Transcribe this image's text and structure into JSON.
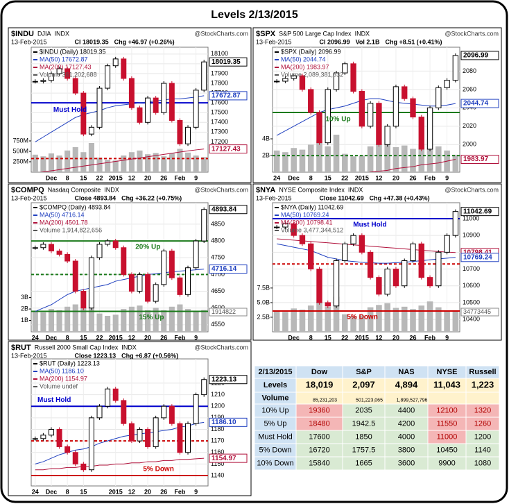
{
  "title": "Levels 2/13/2015",
  "colors": {
    "up": "#ffffff",
    "down": "#c8102e",
    "ma50": "#1f3fbf",
    "ma200": "#b0103a",
    "volume": "#b8b8b8",
    "price": "#000000"
  },
  "chart_data": [
    {
      "type": "candlestick",
      "symbol": "$INDU",
      "name": "DJIA",
      "exchange": "INDX",
      "source": "@StockCharts.com",
      "date": "13-Feb-2015",
      "stats": [
        "Cl 18019.35",
        "Chg +46.97 (+0.26%)"
      ],
      "legend": [
        "$INDU (Daily) 18019.35",
        "MA(50) 17672.87",
        "MA(200) 17127.43",
        "Volume 361,202,688"
      ],
      "categories": [
        null,
        null,
        "Dec",
        null,
        "8",
        null,
        "15",
        null,
        "22",
        null,
        "2015",
        null,
        "12",
        null,
        "20",
        null,
        "26",
        null,
        "Feb",
        null,
        "9",
        null
      ],
      "values": [
        17820,
        17830,
        17900,
        17950,
        17850,
        17700,
        17280,
        17350,
        17750,
        17980,
        18050,
        17850,
        17550,
        17400,
        17650,
        17500,
        17800,
        17420,
        17180,
        17350,
        17730,
        18019.35
      ],
      "ma50": [
        17200,
        17250,
        17300,
        17350,
        17400,
        17450,
        17480,
        17500,
        17520,
        17550,
        17570,
        17580,
        17590,
        17600,
        17610,
        17620,
        17630,
        17640,
        17640,
        17650,
        17660,
        17672.87
      ],
      "ma200": [
        16880,
        16892,
        16904,
        16916,
        16928,
        16940,
        16952,
        16964,
        16976,
        16988,
        17000,
        17012,
        17024,
        17036,
        17048,
        17060,
        17072,
        17084,
        17096,
        17108,
        17118,
        17127.43
      ],
      "volume": [
        420000000,
        380000000,
        450000000,
        400000000,
        520000000,
        600000000,
        480000000,
        700000000,
        350000000,
        300000000,
        280000000,
        400000000,
        480000000,
        520000000,
        430000000,
        460000000,
        380000000,
        450000000,
        560000000,
        470000000,
        400000000,
        361202688
      ],
      "vlim": [
        0,
        3000000000
      ],
      "vticks": [
        {
          "value": 250000000,
          "label": "250M"
        },
        {
          "value": 500000000,
          "label": "500M"
        },
        {
          "value": 750000000,
          "label": "750M"
        }
      ],
      "ylim": [
        16890,
        18170
      ],
      "yticks": [
        17200,
        17300,
        17400,
        17500,
        17600,
        17700,
        17800,
        17900,
        18000,
        18100
      ],
      "levels": [
        {
          "value": 17600,
          "color": "#0000cc",
          "dashed": false,
          "label": "Must Hold"
        },
        {
          "value": 17030,
          "color": "#cc0000",
          "dashed": true
        }
      ],
      "tags": [
        {
          "value": 18019.35,
          "color": "#000000"
        },
        {
          "value": 17672.87,
          "color": "#1f3fbf"
        },
        {
          "value": 17127.43,
          "color": "#b0103a"
        }
      ]
    },
    {
      "type": "candlestick",
      "symbol": "$SPX",
      "name": "S&P 500 Large Cap Index",
      "exchange": "INDX",
      "source": "@StockCharts.com",
      "date": "13-Feb-2015",
      "stats": [
        "Cl 2096.99",
        "Vol 2.1B",
        "Chg +8.51 (+0.41%)"
      ],
      "legend": [
        "$SPX (Daily) 2096.99",
        "MA(50) 2044.74",
        "MA(200) 1983.97",
        "Volume 2,089,381,632"
      ],
      "categories": [
        "24",
        null,
        "Dec",
        null,
        "8",
        null,
        "15",
        null,
        "22",
        null,
        "2015",
        null,
        "12",
        null,
        "20",
        null,
        "26",
        null,
        "Feb",
        null,
        "9",
        null
      ],
      "values": [
        2069,
        2072,
        2075,
        2060,
        2035,
        2002,
        2060,
        2078,
        2088,
        2058,
        2020,
        2045,
        2000,
        2020,
        2063,
        2050,
        2030,
        1995,
        2040,
        2062,
        2070,
        2096.99
      ],
      "ma50": [
        2010,
        2015,
        2020,
        2025,
        2030,
        2035,
        2038,
        2040,
        2042,
        2045,
        2048,
        2050,
        2050,
        2048,
        2046,
        2045,
        2044,
        2043,
        2042,
        2042,
        2043,
        2044.74
      ],
      "ma200": [
        1955,
        1956,
        1958,
        1959,
        1960,
        1962,
        1963,
        1964,
        1966,
        1967,
        1968,
        1970,
        1971,
        1972,
        1974,
        1975,
        1976,
        1978,
        1979,
        1980,
        1982,
        1983.97
      ],
      "volume": [
        2600000000,
        2400000000,
        2900000000,
        2700000000,
        3300000000,
        3800000000,
        3100000000,
        4500000000,
        2200000000,
        1900000000,
        2000000000,
        3100000000,
        3400000000,
        3600000000,
        3000000000,
        3200000000,
        2800000000,
        3300000000,
        3900000000,
        3100000000,
        2600000000,
        2089381632
      ],
      "vlim": [
        0,
        15000000000
      ],
      "vticks": [
        {
          "value": 2000000000,
          "label": "2B"
        },
        {
          "value": 4000000000,
          "label": "4B"
        }
      ],
      "ylim": [
        1970,
        2106
      ],
      "yticks": [
        2000,
        2020,
        2040,
        2060,
        2080
      ],
      "levels": [
        {
          "value": 2035,
          "color": "#1a7a1a",
          "dashed": false,
          "label": "10% Up"
        },
        {
          "value": 1988,
          "color": "#1a7a1a",
          "dashed": true
        }
      ],
      "tags": [
        {
          "value": 2096.99,
          "color": "#000000"
        },
        {
          "value": 2044.74,
          "color": "#1f3fbf"
        },
        {
          "value": 1983.97,
          "color": "#b0103a"
        }
      ]
    },
    {
      "type": "candlestick",
      "symbol": "$COMPQ",
      "name": "Nasdaq Composite",
      "exchange": "INDX",
      "source": "@StockCharts.com",
      "date": "13-Feb-2015",
      "stats": [
        "Close 4893.84",
        "Chg +36.22 (+0.75%)"
      ],
      "legend": [
        "$COMPQ (Daily) 4893.84",
        "MA(50) 4716.14",
        "MA(200) 4501.78",
        "Volume 1,914,822,656"
      ],
      "categories": [
        "24",
        null,
        "Dec",
        null,
        "8",
        null,
        "15",
        null,
        "22",
        null,
        "2015",
        null,
        "12",
        null,
        "20",
        null,
        "26",
        null,
        "Feb",
        null,
        "9",
        null
      ],
      "values": [
        4780,
        4790,
        4770,
        4760,
        4740,
        4650,
        4600,
        4750,
        4790,
        4800,
        4780,
        4700,
        4650,
        4700,
        4620,
        4670,
        4770,
        4690,
        4640,
        4720,
        4800,
        4893.84
      ],
      "ma50": [
        4590,
        4600,
        4610,
        4625,
        4640,
        4650,
        4655,
        4660,
        4665,
        4670,
        4680,
        4685,
        4690,
        4695,
        4700,
        4702,
        4705,
        4708,
        4710,
        4712,
        4714,
        4716.14
      ],
      "ma200": [
        4430,
        4433,
        4437,
        4440,
        4443,
        4447,
        4450,
        4454,
        4457,
        4460,
        4464,
        4467,
        4470,
        4474,
        4477,
        4481,
        4484,
        4487,
        4491,
        4494,
        4498,
        4501.78
      ],
      "volume": [
        1800000000,
        1700000000,
        2000000000,
        1900000000,
        2200000000,
        2400000000,
        2100000000,
        2800000000,
        1600000000,
        1400000000,
        1500000000,
        2000000000,
        2200000000,
        2300000000,
        1900000000,
        2100000000,
        1900000000,
        2200000000,
        2400000000,
        2000000000,
        1800000000,
        1914822656
      ],
      "vlim": [
        0,
        11300000000
      ],
      "vticks": [
        {
          "value": 1000000000,
          "label": "1B"
        },
        {
          "value": 2000000000,
          "label": "2B"
        },
        {
          "value": 3000000000,
          "label": "3B"
        }
      ],
      "volume_tag": "1914822",
      "ylim": [
        4529,
        4914
      ],
      "yticks": [
        4550,
        4600,
        4650,
        4700,
        4750,
        4800,
        4850
      ],
      "levels": [
        {
          "value": 4800,
          "color": "#1a7a1a",
          "dashed": false,
          "label": "20% Up"
        },
        {
          "value": 4700,
          "color": "#1a7a1a",
          "dashed": true
        },
        {
          "value": 4590,
          "color": "#1a7a1a",
          "dashed": false,
          "label": "15% Up"
        }
      ],
      "tags": [
        {
          "value": 4893.84,
          "color": "#000000"
        },
        {
          "value": 4716.14,
          "color": "#1f3fbf"
        }
      ]
    },
    {
      "type": "candlestick",
      "symbol": "$NYA",
      "name": "NYSE Composite Index",
      "exchange": "INDX",
      "source": "@StockCharts.com",
      "date": "13-Feb-2015",
      "stats": [
        "Close 11042.69",
        "Chg +47.38 (+0.43%)"
      ],
      "legend": [
        "$NYA (Daily) 11042.69",
        "MA(50) 10769.24",
        "MA(200) 10798.41",
        "Volume 3,477,344,512"
      ],
      "categories": [
        null,
        null,
        "Dec",
        null,
        "8",
        null,
        "15",
        null,
        "22",
        null,
        "2015",
        null,
        "12",
        null,
        "20",
        null,
        "26",
        null,
        "Feb",
        null,
        "9",
        null
      ],
      "values": [
        10950,
        10970,
        10900,
        10850,
        10700,
        10500,
        10480,
        10750,
        10850,
        10900,
        10800,
        10650,
        10550,
        10700,
        10600,
        10750,
        10850,
        10650,
        10600,
        10800,
        10900,
        11042.69
      ],
      "ma50": [
        10850,
        10840,
        10830,
        10820,
        10810,
        10790,
        10770,
        10760,
        10750,
        10745,
        10740,
        10738,
        10735,
        10735,
        10738,
        10740,
        10745,
        10750,
        10755,
        10760,
        10765,
        10769.24
      ],
      "ma200": [
        10880,
        10876,
        10872,
        10868,
        10864,
        10860,
        10856,
        10852,
        10848,
        10844,
        10840,
        10836,
        10832,
        10828,
        10824,
        10820,
        10816,
        10812,
        10808,
        10804,
        10801,
        10798.41
      ],
      "volume": [
        3600000000,
        3400000000,
        4000000000,
        3800000000,
        4500000000,
        5100000000,
        4300000000,
        6000000000,
        3000000000,
        2700000000,
        2800000000,
        4200000000,
        4600000000,
        4900000000,
        4100000000,
        4300000000,
        3900000000,
        4500000000,
        5200000000,
        4200000000,
        3600000000,
        3477344512
      ],
      "vlim": [
        0,
        22100000000
      ],
      "vticks": [
        {
          "value": 2500000000,
          "label": "2.5B"
        },
        {
          "value": 5000000000,
          "label": "5.0B"
        },
        {
          "value": 7500000000,
          "label": "7.5B"
        }
      ],
      "volume_tag": "34773445",
      "ylim": [
        10326,
        11095
      ],
      "yticks": [
        10400,
        10500,
        10600,
        10700,
        10800,
        10900,
        11000
      ],
      "levels": [
        {
          "value": 11000,
          "color": "#0000cc",
          "dashed": false,
          "label": "Must Hold"
        },
        {
          "value": 10730,
          "color": "#cc0000",
          "dashed": true
        },
        {
          "value": 10450,
          "color": "#cc0000",
          "dashed": false,
          "label": "5% Down"
        }
      ],
      "tags": [
        {
          "value": 11042.69,
          "color": "#000000"
        },
        {
          "value": 10798.41,
          "color": "#b0103a"
        },
        {
          "value": 10769.24,
          "color": "#1f3fbf"
        }
      ]
    },
    {
      "type": "candlestick",
      "symbol": "$RUT",
      "name": "Russell 2000 Small Cap Index",
      "exchange": "INDX",
      "source": "@StockCharts.com",
      "date": "13-Feb-2015",
      "stats": [
        "Close 1223.13",
        "Chg +6.87 (+0.56%)"
      ],
      "legend": [
        "$RUT (Daily) 1223.13",
        "MA(50) 1186.10",
        "MA(200) 1154.97",
        "Volume undef"
      ],
      "categories": [
        "24",
        null,
        "Dec",
        null,
        "8",
        null,
        "15",
        null,
        null,
        null,
        "2015",
        null,
        "12",
        null,
        "20",
        null,
        "26",
        null,
        "Feb",
        null,
        "9",
        null
      ],
      "values": [
        1172,
        1175,
        1180,
        1165,
        1160,
        1150,
        1145,
        1190,
        1200,
        1215,
        1205,
        1185,
        1170,
        1180,
        1165,
        1190,
        1200,
        1185,
        1160,
        1185,
        1210,
        1223.13
      ],
      "ma50": [
        1150,
        1152,
        1155,
        1158,
        1160,
        1162,
        1163,
        1165,
        1168,
        1170,
        1172,
        1174,
        1175,
        1176,
        1177,
        1178,
        1179,
        1180,
        1182,
        1183,
        1185,
        1186.1
      ],
      "ma200": [
        1145,
        1145,
        1146,
        1146,
        1147,
        1147,
        1148,
        1148,
        1149,
        1149,
        1150,
        1150,
        1151,
        1151,
        1152,
        1152,
        1153,
        1153,
        1154,
        1154,
        1154.5,
        1154.97
      ],
      "ylim": [
        1131,
        1241
      ],
      "yticks": [
        1140,
        1150,
        1160,
        1170,
        1180,
        1190,
        1200,
        1210,
        1220
      ],
      "levels": [
        {
          "value": 1200,
          "color": "#0000cc",
          "dashed": false,
          "label": "Must Hold"
        },
        {
          "value": 1170,
          "color": "#cc0000",
          "dashed": true
        },
        {
          "value": 1140,
          "color": "#cc0000",
          "dashed": false,
          "label": "5% Down"
        }
      ],
      "tags": [
        {
          "value": 1223.13,
          "color": "#000000"
        },
        {
          "value": 1186.1,
          "label": "1186.10",
          "color": "#1f3fbf"
        },
        {
          "value": 1154.97,
          "color": "#b0103a"
        }
      ]
    }
  ],
  "table": {
    "header": [
      "2/13/2015",
      "Dow",
      "S&P",
      "NAS",
      "NYSE",
      "Russell"
    ],
    "rows": [
      [
        "Levels",
        "18,019",
        "2,097",
        "4,894",
        "11,043",
        "1,223"
      ],
      [
        "Volume",
        "85,231,203",
        "501,223,065",
        "1,899,527,796",
        null,
        null
      ],
      [
        "10% Up",
        "19360",
        "2035",
        "4400",
        "12100",
        "1320"
      ],
      [
        "5% Up",
        "18480",
        "1942.5",
        "4200",
        "11550",
        "1260"
      ],
      [
        "Must Hold",
        "17600",
        "1850",
        "4000",
        "11000",
        "1200"
      ],
      [
        "5% Down",
        "16720",
        "1757.5",
        "3800",
        "10450",
        "1140"
      ],
      [
        "10% Down",
        "15840",
        "1665",
        "3600",
        "9900",
        "1080"
      ]
    ]
  }
}
